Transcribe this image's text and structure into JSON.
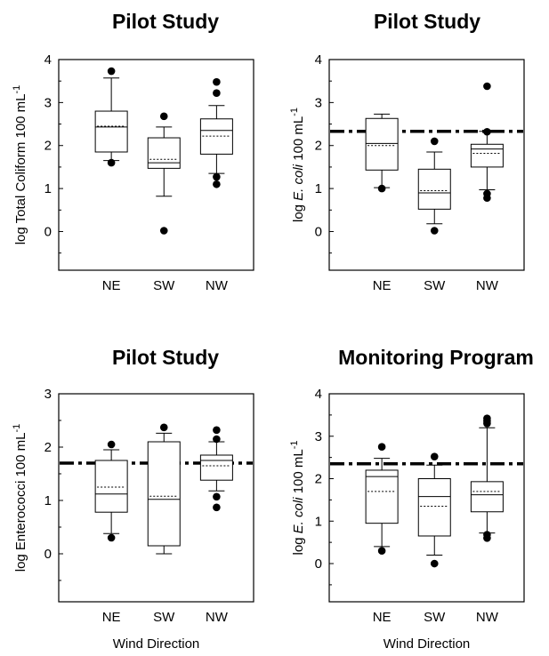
{
  "chart_data": [
    {
      "type": "box",
      "title": "Pilot Study",
      "ylabel_main": "log Total Coliform 100 mL",
      "ylabel_sup": "-1",
      "xlabel": "",
      "categories": [
        "NE",
        "SW",
        "NW"
      ],
      "yticks": [
        "0",
        "1",
        "2",
        "3",
        "4"
      ],
      "ylim": [
        -0.9,
        4
      ],
      "threshold": null,
      "boxes": [
        {
          "q1": 1.85,
          "median": 2.43,
          "q3": 2.8,
          "mean": 2.45,
          "whisker_low": 1.65,
          "whisker_high": 3.57,
          "outliers": [
            3.73,
            1.6
          ]
        },
        {
          "q1": 1.47,
          "median": 1.6,
          "q3": 2.18,
          "mean": 1.68,
          "whisker_low": 0.82,
          "whisker_high": 2.43,
          "outliers": [
            2.68,
            0.02
          ]
        },
        {
          "q1": 1.8,
          "median": 2.35,
          "q3": 2.62,
          "mean": 2.22,
          "whisker_low": 1.35,
          "whisker_high": 2.93,
          "outliers": [
            3.48,
            3.22,
            1.27,
            1.1
          ]
        }
      ]
    },
    {
      "type": "box",
      "title": "Pilot Study",
      "ylabel_main": "log ",
      "ylabel_italic": "E. coli",
      "ylabel_rest": " 100 mL",
      "ylabel_sup": "-1",
      "xlabel": "",
      "categories": [
        "NE",
        "SW",
        "NW"
      ],
      "yticks": [
        "0",
        "1",
        "2",
        "3",
        "4"
      ],
      "ylim": [
        -0.9,
        4
      ],
      "threshold": 2.33,
      "boxes": [
        {
          "q1": 1.43,
          "median": 2.05,
          "q3": 2.63,
          "mean": 2.0,
          "whisker_low": 1.02,
          "whisker_high": 2.73,
          "outliers": [
            1.0
          ]
        },
        {
          "q1": 0.52,
          "median": 0.9,
          "q3": 1.45,
          "mean": 0.95,
          "whisker_low": 0.18,
          "whisker_high": 1.85,
          "outliers": [
            2.1,
            0.02
          ]
        },
        {
          "q1": 1.5,
          "median": 1.92,
          "q3": 2.03,
          "mean": 1.82,
          "whisker_low": 0.97,
          "whisker_high": 2.33,
          "outliers": [
            3.38,
            2.32,
            0.88,
            0.78
          ]
        }
      ]
    },
    {
      "type": "box",
      "title": "Pilot Study",
      "ylabel_main": "log Enterococci 100 mL",
      "ylabel_sup": "-1",
      "xlabel": "Wind Direction",
      "categories": [
        "NE",
        "SW",
        "NW"
      ],
      "yticks": [
        "0",
        "1",
        "2",
        "3"
      ],
      "ylim": [
        -0.9,
        3
      ],
      "threshold": 1.7,
      "boxes": [
        {
          "q1": 0.78,
          "median": 1.12,
          "q3": 1.75,
          "mean": 1.25,
          "whisker_low": 0.38,
          "whisker_high": 1.95,
          "outliers": [
            2.05,
            0.3
          ]
        },
        {
          "q1": 0.15,
          "median": 1.02,
          "q3": 2.1,
          "mean": 1.08,
          "whisker_low": 0.0,
          "whisker_high": 2.26,
          "outliers": [
            2.37
          ]
        },
        {
          "q1": 1.38,
          "median": 1.75,
          "q3": 1.85,
          "mean": 1.65,
          "whisker_low": 1.18,
          "whisker_high": 2.1,
          "outliers": [
            2.32,
            2.15,
            1.07,
            0.87
          ]
        }
      ]
    },
    {
      "type": "box",
      "title": "Monitoring Program",
      "ylabel_main": "log ",
      "ylabel_italic": "E. coli",
      "ylabel_rest": " 100 mL",
      "ylabel_sup": "-1",
      "xlabel": "Wind Direction",
      "categories": [
        "NE",
        "SW",
        "NW"
      ],
      "yticks": [
        "0",
        "1",
        "2",
        "3",
        "4"
      ],
      "ylim": [
        -0.9,
        4
      ],
      "threshold": 2.35,
      "boxes": [
        {
          "q1": 0.95,
          "median": 2.05,
          "q3": 2.2,
          "mean": 1.7,
          "whisker_low": 0.4,
          "whisker_high": 2.48,
          "outliers": [
            2.75,
            0.3
          ]
        },
        {
          "q1": 0.65,
          "median": 1.58,
          "q3": 2.0,
          "mean": 1.35,
          "whisker_low": 0.2,
          "whisker_high": 2.32,
          "outliers": [
            2.52,
            0.0
          ]
        },
        {
          "q1": 1.22,
          "median": 1.62,
          "q3": 1.93,
          "mean": 1.7,
          "whisker_low": 0.72,
          "whisker_high": 3.2,
          "outliers": [
            3.42,
            3.36,
            3.3,
            0.68,
            0.6
          ]
        }
      ]
    }
  ]
}
